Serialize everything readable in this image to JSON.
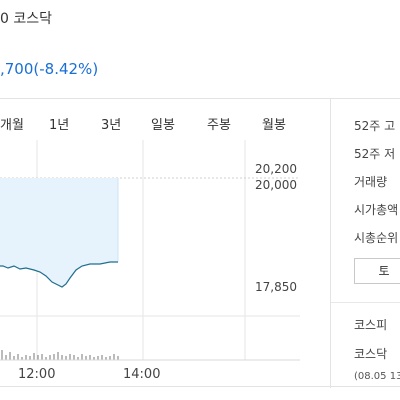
{
  "header": {
    "market_suffix": "0 코스닥",
    "change_text": ",700(-8.42%)"
  },
  "tabs": [
    {
      "label": "개월"
    },
    {
      "label": "1년"
    },
    {
      "label": "3년"
    },
    {
      "label": "일봉"
    },
    {
      "label": "주봉"
    },
    {
      "label": "월봉"
    }
  ],
  "price_labels": {
    "high": "20,200",
    "ref": "20,000",
    "low": "17,850"
  },
  "time_labels": {
    "t1": "12:00",
    "t2": "14:00"
  },
  "stats": {
    "high52": "52주 고",
    "low52": "52주 저",
    "volume": "거래량",
    "market_cap": "시가총액",
    "cap_rank": "시총순위"
  },
  "side_button": "토",
  "indices": {
    "kospi": "코스피",
    "kosdaq": "코스닥",
    "date": "(08.05 13"
  },
  "colors": {
    "accent": "#1a6fd6",
    "line": "#1f6f8f",
    "area": "#e6f2fc"
  }
}
